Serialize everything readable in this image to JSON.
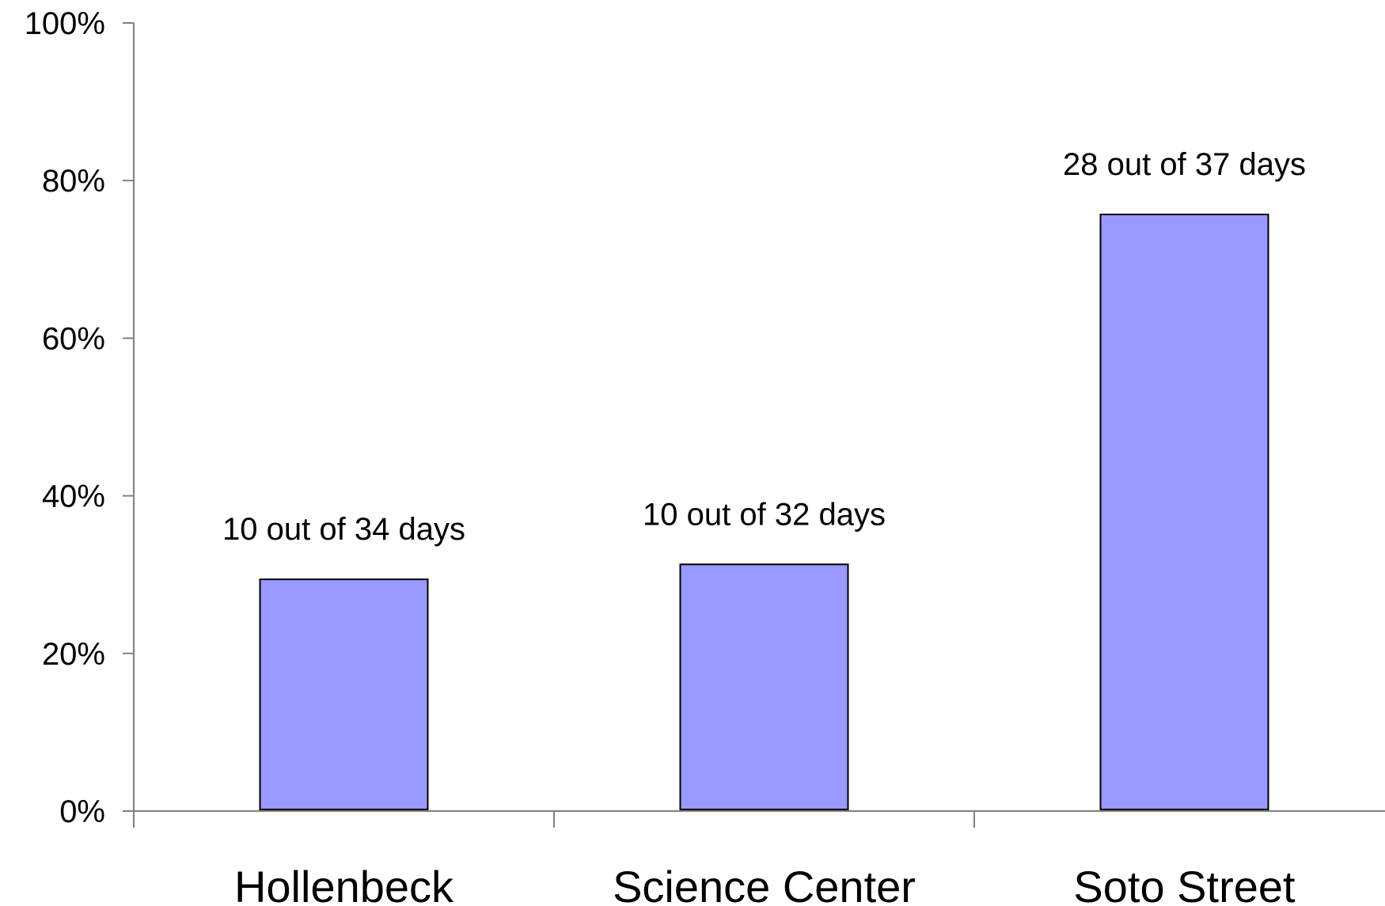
{
  "chart_data": {
    "type": "bar",
    "title": "",
    "xlabel": "",
    "ylabel": "",
    "categories": [
      "Hollenbeck",
      "Science Center",
      "Soto Street"
    ],
    "values": [
      29.4,
      31.3,
      75.7
    ],
    "value_unit": "percent",
    "data_labels": [
      "10 out of 34 days",
      "10 out of 32 days",
      "28 out of 37 days"
    ],
    "ylim": [
      0,
      100
    ],
    "y_ticks": [
      0,
      20,
      40,
      60,
      80,
      100
    ],
    "y_tick_labels": [
      "0%",
      "20%",
      "40%",
      "60%",
      "80%",
      "100%"
    ],
    "grid": false,
    "legend": "none",
    "colors": {
      "bar_fill": "#9999ff",
      "bar_stroke": "#000000",
      "axis": "#808080",
      "text": "#000000",
      "background": "#ffffff"
    }
  }
}
